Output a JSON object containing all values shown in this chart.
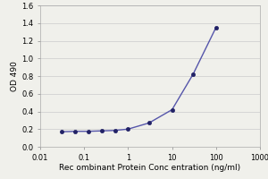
{
  "x": [
    0.03125,
    0.0625,
    0.125,
    0.25,
    0.5,
    1.0,
    3.0,
    10.0,
    30.0,
    100.0
  ],
  "y": [
    0.17,
    0.175,
    0.175,
    0.18,
    0.185,
    0.2,
    0.27,
    0.42,
    0.82,
    1.35
  ],
  "line_color": "#5555aa",
  "marker_color": "#222266",
  "marker_style": "o",
  "marker_size": 3,
  "line_width": 1.0,
  "xlabel": "Rec ombinant Protein Conc entration (ng/ml)",
  "ylabel": "OD 490",
  "xlim": [
    0.01,
    1000
  ],
  "ylim": [
    0.0,
    1.6
  ],
  "yticks": [
    0.0,
    0.2,
    0.4,
    0.6,
    0.8,
    1.0,
    1.2,
    1.4,
    1.6
  ],
  "xtick_vals": [
    0.01,
    0.1,
    1,
    10,
    100,
    1000
  ],
  "xtick_labels": [
    "0.01",
    "0.1",
    "1",
    "10",
    "100",
    "1000"
  ],
  "background_color": "#f0f0eb",
  "plot_bg_color": "#f0f0eb",
  "grid_color": "#cccccc",
  "font_size": 6,
  "label_font_size": 6.5,
  "spine_color": "#aaaaaa"
}
